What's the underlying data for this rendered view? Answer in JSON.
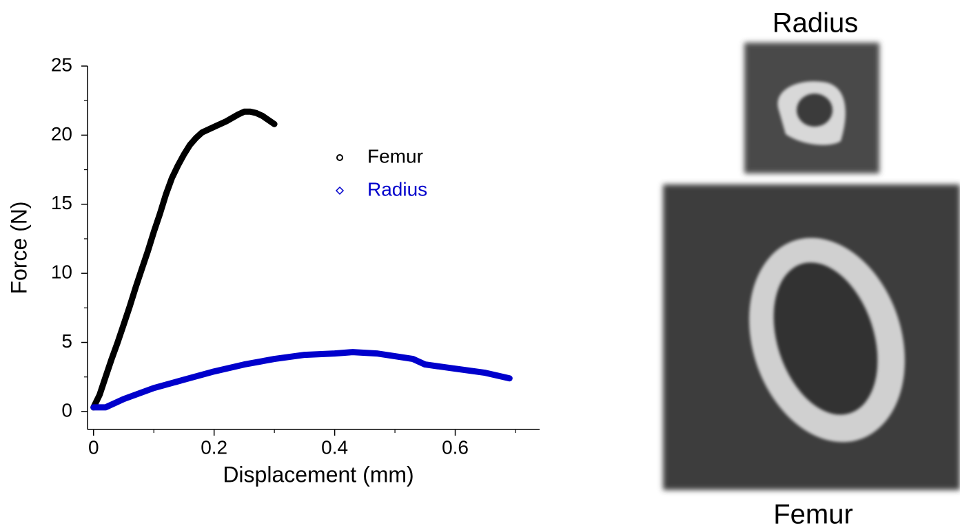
{
  "chart_data": {
    "type": "line",
    "xlabel": "Displacement (mm)",
    "ylabel": "Force (N)",
    "xlim": [
      -0.01,
      0.74
    ],
    "ylim": [
      -1.3,
      25
    ],
    "xticks": [
      0,
      0.2,
      0.4,
      0.6
    ],
    "yticks": [
      0,
      5,
      10,
      15,
      20,
      25
    ],
    "xminorticks": [
      0.1,
      0.3,
      0.5,
      0.7
    ],
    "yminorticks": [
      2.5,
      7.5,
      12.5,
      17.5,
      22.5
    ],
    "legend": "upper right",
    "series": [
      {
        "name": "Femur",
        "color": "#000000",
        "marker": "circle",
        "x": [
          0,
          0.01,
          0.02,
          0.03,
          0.04,
          0.05,
          0.06,
          0.07,
          0.08,
          0.09,
          0.1,
          0.11,
          0.12,
          0.13,
          0.14,
          0.15,
          0.16,
          0.17,
          0.18,
          0.2,
          0.22,
          0.24,
          0.25,
          0.26,
          0.27,
          0.28,
          0.29,
          0.3
        ],
        "values": [
          0.3,
          1.2,
          2.5,
          3.8,
          5.0,
          6.3,
          7.6,
          9.0,
          10.3,
          11.6,
          13.0,
          14.3,
          15.7,
          16.9,
          17.8,
          18.6,
          19.3,
          19.8,
          20.2,
          20.6,
          21.0,
          21.5,
          21.7,
          21.7,
          21.6,
          21.4,
          21.1,
          20.8
        ]
      },
      {
        "name": "Radius",
        "color": "#0000cc",
        "marker": "diamond",
        "x": [
          0,
          0.02,
          0.05,
          0.1,
          0.15,
          0.2,
          0.25,
          0.3,
          0.35,
          0.4,
          0.43,
          0.47,
          0.5,
          0.53,
          0.55,
          0.6,
          0.65,
          0.69
        ],
        "values": [
          0.3,
          0.3,
          0.9,
          1.7,
          2.3,
          2.9,
          3.4,
          3.8,
          4.1,
          4.2,
          4.3,
          4.2,
          4.0,
          3.8,
          3.4,
          3.1,
          2.8,
          2.4
        ]
      }
    ]
  },
  "images": {
    "top_label": "Radius",
    "bottom_label": "Femur"
  }
}
